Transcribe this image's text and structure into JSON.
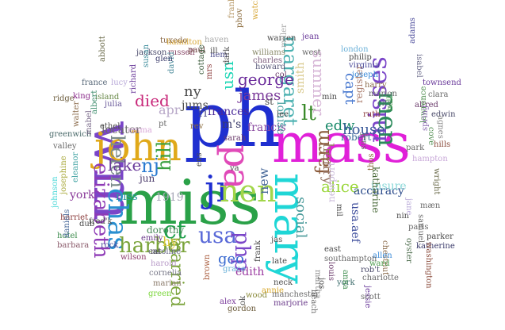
{
  "words": [
    {
      "t": "ph",
      "c": "#1f2fd0"
    },
    {
      "t": "mass",
      "c": "#e020d8"
    },
    {
      "t": "miss",
      "c": "#2aa148"
    },
    {
      "t": "wm",
      "c": "#7a45c8"
    },
    {
      "t": "mary",
      "c": "#1fd6d6"
    },
    {
      "t": "john",
      "c": "#e0a91a"
    },
    {
      "t": "jr",
      "c": "#1f2fd0"
    },
    {
      "t": "pa",
      "c": "#e04ab8"
    },
    {
      "t": "nen",
      "c": "#a2d64a"
    },
    {
      "t": "elizabeth",
      "c": "#8e3ab6"
    },
    {
      "t": "chas",
      "c": "#2a8fd0"
    },
    {
      "t": "misses",
      "c": "#7a45c8"
    },
    {
      "t": "men",
      "c": "#2a8a5a"
    },
    {
      "t": "usa",
      "c": "#5a6ad8"
    },
    {
      "t": "married",
      "c": "#7aa33a"
    },
    {
      "t": "harbor",
      "c": "#7aa33a"
    },
    {
      "t": "php",
      "c": "#7a45c8"
    },
    {
      "t": "margaret",
      "c": "#4ab0b0"
    },
    {
      "t": "helen",
      "c": "#7a8a8a"
    },
    {
      "t": "farm",
      "c": "#8a5a3a"
    },
    {
      "t": "ct",
      "c": "#1fa04a"
    },
    {
      "t": "lt",
      "c": "#3a8a2a"
    },
    {
      "t": "hill",
      "c": "#3aa040"
    },
    {
      "t": "nj",
      "c": "#2a7ad0"
    },
    {
      "t": "died",
      "c": "#c8287a"
    },
    {
      "t": "lake",
      "c": "#6a3a9a"
    },
    {
      "t": "alice",
      "c": "#9ad63a"
    },
    {
      "t": "george",
      "c": "#6a2a9a"
    },
    {
      "t": "james",
      "c": "#7a3a9a"
    },
    {
      "t": "henry",
      "c": "#9a7a6a"
    },
    {
      "t": "edw",
      "c": "#1a8a6a"
    },
    {
      "t": "summer",
      "c": "#d8b8d8"
    },
    {
      "t": "capt",
      "c": "#4a7ad0"
    },
    {
      "t": "social",
      "c": "#4a9a9a"
    },
    {
      "t": "usn",
      "c": "#1fd6b6"
    },
    {
      "t": "geo",
      "c": "#3a6ad0"
    },
    {
      "t": "frances",
      "c": "#4a2a9a"
    },
    {
      "t": "house",
      "c": "#3a5a9a"
    },
    {
      "t": "accuracy",
      "c": "#2a4a8a"
    },
    {
      "t": "ny",
      "c": "#4a4a4a"
    },
    {
      "t": "apr",
      "c": "#b8a8c8"
    },
    {
      "t": "niss",
      "c": "#2a9aa0"
    },
    {
      "t": "1919",
      "c": "#a8a8b8"
    },
    {
      "t": "new",
      "c": "#4a6a9a"
    },
    {
      "t": "york",
      "c": "#8a3a9a"
    },
    {
      "t": "hy",
      "c": "#d8c83a"
    },
    {
      "t": "jun",
      "c": "#4a3a6a"
    },
    {
      "t": "jums",
      "c": "#4a4a4a"
    },
    {
      "t": "locater",
      "c": "#6a6a6a"
    },
    {
      "t": "insure",
      "c": "#8ad8d8"
    },
    {
      "t": "edith",
      "c": "#9a3aa0"
    },
    {
      "t": "francis",
      "c": "#8a4aa0"
    },
    {
      "t": "m's",
      "c": "#3a3a6a"
    },
    {
      "t": "usa.aef",
      "c": "#3a4a9a"
    },
    {
      "t": "register",
      "c": "#a87a6a"
    },
    {
      "t": "smith",
      "c": "#d8c88a"
    },
    {
      "t": "louise",
      "c": "#4aa0a0"
    },
    {
      "t": "robert",
      "c": "#3a6a9a"
    },
    {
      "t": "katharine",
      "c": "#4a6a3a"
    },
    {
      "t": "newport",
      "c": "#c8b8d8"
    },
    {
      "t": "gordon",
      "c": "#6a5a3a"
    },
    {
      "t": "dorothy",
      "c": "#4a8a5a"
    },
    {
      "t": "emily",
      "c": "#6a3a8a"
    },
    {
      "t": "harold",
      "c": "#b89ac8"
    },
    {
      "t": "wilson",
      "c": "#8a3a6a"
    },
    {
      "t": "caroline",
      "c": "#6a6a8a"
    },
    {
      "t": "marian",
      "c": "#8a7a6a"
    },
    {
      "t": "cornelia",
      "c": "#7a7a8a"
    },
    {
      "t": "green",
      "c": "#7ad63a"
    },
    {
      "t": "grace",
      "c": "#6ab0d8"
    },
    {
      "t": "annie",
      "c": "#d8a82a"
    },
    {
      "t": "wood",
      "c": "#8a8a3a"
    },
    {
      "t": "marjorie",
      "c": "#6a3a8a"
    },
    {
      "t": "manchester",
      "c": "#6a6a6a"
    },
    {
      "t": "alex",
      "c": "#7a3a9a"
    },
    {
      "t": "brown",
      "c": "#a85a3a"
    },
    {
      "t": "rock",
      "c": "#4a4a9a"
    },
    {
      "t": "barbara",
      "c": "#8a5a6a"
    },
    {
      "t": "hotel",
      "c": "#3a8a4a"
    },
    {
      "t": "harriet",
      "c": "#8a3a3a"
    },
    {
      "t": "johnson",
      "c": "#4ad8d8"
    },
    {
      "t": "daniels",
      "c": "#4a6a9a"
    },
    {
      "t": "eleanor",
      "c": "#3aa0a0"
    },
    {
      "t": "josephine",
      "c": "#a8a83a"
    },
    {
      "t": "greenwich",
      "c": "#4a6a6a"
    },
    {
      "t": "valley",
      "c": "#6a6a6a"
    },
    {
      "t": "ridge",
      "c": "#6a5a3a"
    },
    {
      "t": "king",
      "c": "#8a2a8a"
    },
    {
      "t": "island",
      "c": "#6a8a4a"
    },
    {
      "t": "fred'k",
      "c": "#4a4a4a"
    },
    {
      "t": "julia",
      "c": "#6a5a9a"
    },
    {
      "t": "ethel",
      "c": "#4a4a4a"
    },
    {
      "t": "emma",
      "c": "#d8a8d8"
    },
    {
      "t": "walter",
      "c": "#8a6a4a"
    },
    {
      "t": "mabel",
      "c": "#7a6a8a"
    },
    {
      "t": "france",
      "c": "#5a6a7a"
    },
    {
      "t": "lucy",
      "c": "#b8a8d8"
    },
    {
      "t": "richard",
      "c": "#6a3a9a"
    },
    {
      "t": "jackson",
      "c": "#4a4a6a"
    },
    {
      "t": "russell",
      "c": "#8a4a6a"
    },
    {
      "t": "tuxedo",
      "c": "#8a6a4a"
    },
    {
      "t": "hamilton",
      "c": "#d8a83a"
    },
    {
      "t": "haven",
      "c": "#a8a8a8"
    },
    {
      "t": "paul",
      "c": "#6a3a3a"
    },
    {
      "t": "david",
      "c": "#4a8a9a"
    },
    {
      "t": "glen",
      "c": "#3a3a6a"
    },
    {
      "t": "susan",
      "c": "#3a8a9a"
    },
    {
      "t": "abbott",
      "c": "#6a6a4a"
    },
    {
      "t": "albert",
      "c": "#3a8a6a"
    },
    {
      "t": "mrs",
      "c": "#8a3a3a"
    },
    {
      "t": "cottage",
      "c": "#3a5a3a"
    },
    {
      "t": "nem",
      "c": "#4a4a8a"
    },
    {
      "t": "dark",
      "c": "#4a4a4a"
    },
    {
      "t": "charles",
      "c": "#7a5a7a"
    },
    {
      "t": "williams",
      "c": "#8a8a6a"
    },
    {
      "t": "warren",
      "c": "#4a4a4a"
    },
    {
      "t": "miller",
      "c": "#a8a8a8"
    },
    {
      "t": "west",
      "c": "#6a6a6a"
    },
    {
      "t": "howard",
      "c": "#5a5a7a"
    },
    {
      "t": "col",
      "c": "#6a3a6a"
    },
    {
      "t": "jean",
      "c": "#6a3a9a"
    },
    {
      "t": "phov",
      "c": "#8a6a3a"
    },
    {
      "t": "franklin",
      "c": "#b89a6a"
    },
    {
      "t": "watch",
      "c": "#d8a83a"
    },
    {
      "t": "london",
      "c": "#6ab0d8"
    },
    {
      "t": "philip",
      "c": "#4a4a4a"
    },
    {
      "t": "virginia",
      "c": "#4a4a9a"
    },
    {
      "t": "joseph",
      "c": "#3a8ad8"
    },
    {
      "t": "harry",
      "c": "#8a6a4a"
    },
    {
      "t": "marion",
      "c": "#6a6a6a"
    },
    {
      "t": "city",
      "c": "#4a6a6a"
    },
    {
      "t": "ruth",
      "c": "#8a3a3a"
    },
    {
      "t": "hall",
      "c": "#4a9a4a"
    },
    {
      "t": "adams",
      "c": "#4a4a9a"
    },
    {
      "t": "townsend",
      "c": "#6a3a9a"
    },
    {
      "t": "clara",
      "c": "#6a6a6a"
    },
    {
      "t": "edwin",
      "c": "#4a4a6a"
    },
    {
      "t": "alfred",
      "c": "#6a3a6a"
    },
    {
      "t": "lawrence",
      "c": "#4a8a4a"
    },
    {
      "t": "park",
      "c": "#6a6a6a"
    },
    {
      "t": "hills",
      "c": "#8a4a3a"
    },
    {
      "t": "hampton",
      "c": "#c8a8d8"
    },
    {
      "t": "isabel",
      "c": "#6a6a8a"
    },
    {
      "t": "agnes",
      "c": "#8a8a8a"
    },
    {
      "t": "spring",
      "c": "#8a6ab0"
    },
    {
      "t": "cove",
      "c": "#4a8a4a"
    },
    {
      "t": "wright",
      "c": "#6a6a4a"
    },
    {
      "t": "mæn",
      "c": "#6a6a6a"
    },
    {
      "t": "nin",
      "c": "#4a4a4a"
    },
    {
      "t": "jane",
      "c": "#b8a8d8"
    },
    {
      "t": "paris",
      "c": "#6a6a6a"
    },
    {
      "t": "samuel",
      "c": "#6a6a6a"
    },
    {
      "t": "parker",
      "c": "#4a4a4a"
    },
    {
      "t": "katherine",
      "c": "#3a3a6a"
    },
    {
      "t": "oyster",
      "c": "#4a6a4a"
    },
    {
      "t": "washington",
      "c": "#8a4a3a"
    },
    {
      "t": "chestnut",
      "c": "#8a6a4a"
    },
    {
      "t": "allen",
      "c": "#3a8ad8"
    },
    {
      "t": "ward",
      "c": "#4a9a4a"
    },
    {
      "t": "rob't",
      "c": "#4a4a6a"
    },
    {
      "t": "charlotte",
      "c": "#6a6a6a"
    },
    {
      "t": "york",
      "c": "#3a6a6a"
    },
    {
      "t": "anna",
      "c": "#3a8a4a"
    },
    {
      "t": "jessie",
      "c": "#6a3a9a"
    },
    {
      "t": "scott",
      "c": "#6a6a6a"
    },
    {
      "t": "martha",
      "c": "#8a8a8a"
    },
    {
      "t": "beach",
      "c": "#6a6a6a"
    },
    {
      "t": "southampton",
      "c": "#6a6a6a"
    },
    {
      "t": "louis",
      "c": "#6a3a6a"
    },
    {
      "t": "east",
      "c": "#4a4a4a"
    },
    {
      "t": "neck",
      "c": "#4a4a4a"
    },
    {
      "t": "late",
      "c": "#4a4a4a"
    },
    {
      "t": "jas",
      "c": "#4a4a4a"
    },
    {
      "t": "frank",
      "c": "#4a4a4a"
    },
    {
      "t": "thos",
      "c": "#8a6a3a"
    },
    {
      "t": "jos",
      "c": "#4a4a4a"
    },
    {
      "t": "ens",
      "c": "#4a4a4a"
    },
    {
      "t": "sarah",
      "c": "#6a3a6a"
    },
    {
      "t": "jens",
      "c": "#6a6a6a"
    },
    {
      "t": "va",
      "c": "#4a4a4a"
    },
    {
      "t": "ri",
      "c": "#4a4a8a"
    },
    {
      "t": "st",
      "c": "#4a4a4a"
    },
    {
      "t": "pt",
      "c": "#6a6a6a"
    },
    {
      "t": "mil",
      "c": "#4a4a4a"
    },
    {
      "t": "min",
      "c": "#4a4a4a"
    },
    {
      "t": "ill",
      "c": "#4a4a4a"
    },
    {
      "t": "rev",
      "c": "#8a6a3a"
    },
    {
      "t": "mt",
      "c": "#4a4a4a"
    },
    {
      "t": "ok",
      "c": "#4a4a4a"
    },
    {
      "t": "lee",
      "c": "#4a4a4a"
    },
    {
      "t": "dub",
      "c": "#4a4a4a"
    }
  ]
}
